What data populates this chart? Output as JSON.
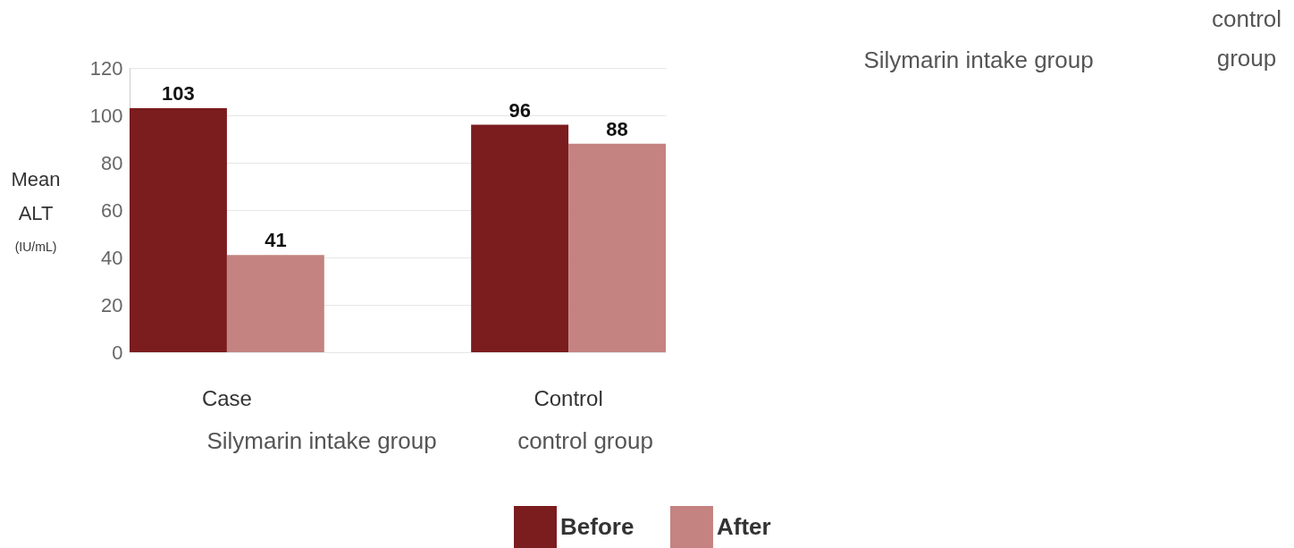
{
  "chart_data": {
    "type": "bar",
    "ylabel": "Mean ALT (IU/mL)",
    "categories": [
      "Case",
      "Control"
    ],
    "series": [
      {
        "name": "Before",
        "color": "#7b1c1e",
        "values": [
          103,
          96
        ]
      },
      {
        "name": "After",
        "color": "#c48381",
        "values": [
          41,
          88
        ]
      }
    ],
    "ylim": [
      0,
      120
    ],
    "yticks": [
      0,
      20,
      40,
      60,
      80,
      100,
      120
    ],
    "grid": "y",
    "legend": "bottom",
    "data_labels": true,
    "annotations": [
      "Silymarin intake group",
      "control group",
      "Silymarin intake group",
      "control group"
    ]
  }
}
